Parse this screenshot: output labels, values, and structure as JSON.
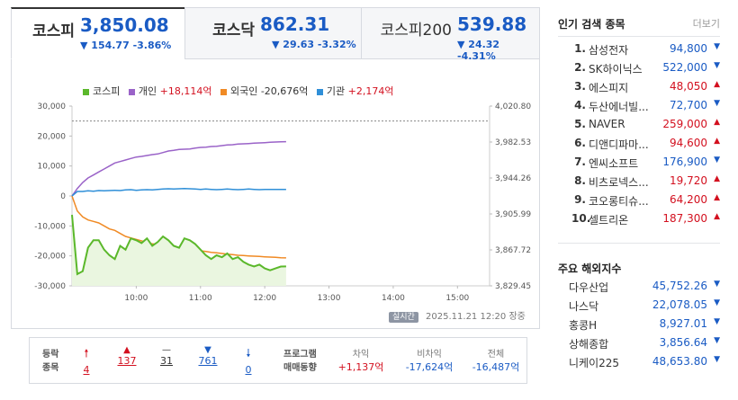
{
  "tabs": [
    {
      "name": "코스피",
      "value": "3,850.08",
      "change": "▼ 154.77 -3.86%"
    },
    {
      "name": "코스닥",
      "value": "862.31",
      "change": "▼ 29.63 -3.32%"
    },
    {
      "name": "코스피200",
      "value": "539.88",
      "change": "▼ 24.32 -4.31%"
    }
  ],
  "legend": {
    "kospi": "코스피",
    "individual": "개인",
    "individual_val": "+18,114억",
    "foreign": "외국인",
    "foreign_val": "-20,676억",
    "institution": "기관",
    "institution_val": "+2,174억"
  },
  "chart_data": {
    "type": "line",
    "left_axis_ticks": [
      "30,000",
      "20,000",
      "10,000",
      "0",
      "-10,000",
      "-20,000",
      "-30,000"
    ],
    "right_axis_ticks": [
      "4,020.80",
      "3,982.53",
      "3,944.26",
      "3,905.99",
      "3,867.72",
      "3,829.45"
    ],
    "x_ticks": [
      "10:00",
      "11:00",
      "12:00",
      "13:00",
      "14:00",
      "15:00"
    ],
    "ylim_left": [
      -30000,
      30000
    ],
    "ylim_right": [
      3829.45,
      4020.8
    ],
    "prev_close_right": 4004.85,
    "colors": {
      "kospi": "#5bb82b",
      "individual": "#9a63c8",
      "foreign": "#f08a24",
      "institution": "#2f8fd8"
    },
    "x_time": [
      "09:00",
      "09:05",
      "09:10",
      "09:15",
      "09:20",
      "09:25",
      "09:30",
      "09:35",
      "09:40",
      "09:45",
      "09:50",
      "09:55",
      "10:00",
      "10:05",
      "10:10",
      "10:15",
      "10:20",
      "10:25",
      "10:30",
      "10:35",
      "10:40",
      "10:45",
      "10:50",
      "10:55",
      "11:00",
      "11:05",
      "11:10",
      "11:15",
      "11:20",
      "11:25",
      "11:30",
      "11:35",
      "11:40",
      "11:45",
      "11:50",
      "11:55",
      "12:00",
      "12:05",
      "12:10",
      "12:15",
      "12:20"
    ],
    "series": [
      {
        "name": "개인",
        "axis": "left",
        "values": [
          0,
          2500,
          4500,
          6000,
          7000,
          8000,
          9000,
          10000,
          11000,
          11500,
          12000,
          12500,
          13000,
          13200,
          13500,
          13800,
          14000,
          14500,
          15000,
          15200,
          15500,
          15600,
          15700,
          16000,
          16200,
          16300,
          16500,
          16600,
          16800,
          17000,
          17100,
          17300,
          17400,
          17500,
          17600,
          17700,
          17800,
          17900,
          18000,
          18050,
          18114
        ]
      },
      {
        "name": "외국인",
        "axis": "left",
        "values": [
          0,
          -5000,
          -7000,
          -8000,
          -8500,
          -9000,
          -10000,
          -11000,
          -11500,
          -12500,
          -13500,
          -14000,
          -14500,
          -15000,
          -15500,
          -16000,
          -16200,
          -16500,
          -16800,
          -17000,
          -17300,
          -17500,
          -17800,
          -18000,
          -18300,
          -18500,
          -18800,
          -19000,
          -19200,
          -19400,
          -19600,
          -19800,
          -19900,
          -20000,
          -20100,
          -20200,
          -20300,
          -20400,
          -20500,
          -20600,
          -20676
        ]
      },
      {
        "name": "기관",
        "axis": "left",
        "values": [
          0,
          1500,
          1500,
          1700,
          1600,
          1800,
          1700,
          1800,
          1900,
          1800,
          2000,
          2100,
          1900,
          2000,
          2100,
          2000,
          2200,
          2300,
          2400,
          2300,
          2400,
          2500,
          2400,
          2300,
          2200,
          2300,
          2200,
          2100,
          2200,
          2300,
          2200,
          2100,
          2200,
          2300,
          2200,
          2100,
          2200,
          2200,
          2150,
          2180,
          2174
        ]
      },
      {
        "name": "코스피",
        "axis": "right",
        "values": [
          3905,
          3842,
          3845,
          3870,
          3878,
          3878,
          3868,
          3862,
          3858,
          3872,
          3868,
          3880,
          3878,
          3875,
          3880,
          3872,
          3876,
          3882,
          3878,
          3872,
          3870,
          3880,
          3878,
          3874,
          3868,
          3862,
          3858,
          3862,
          3860,
          3864,
          3858,
          3860,
          3855,
          3852,
          3850,
          3852,
          3848,
          3846,
          3848,
          3850,
          3850.08
        ]
      }
    ]
  },
  "status": {
    "label": "실시간",
    "datetime": "2025.11.21 12:20",
    "state": "장중"
  },
  "bottom": {
    "h1a": "등락",
    "h1b": "종목",
    "up_limit": "4",
    "up": "137",
    "flat": "31",
    "down": "761",
    "down_limit": "0",
    "h2a": "프로그램",
    "h2b": "매매동향",
    "c1_label": "차익",
    "c1_value": "+1,137억",
    "c2_label": "비차익",
    "c2_value": "-17,624억",
    "c3_label": "전체",
    "c3_value": "-16,487억"
  },
  "popular": {
    "title": "인기 검색 종목",
    "more": "더보기",
    "items": [
      {
        "no": "1.",
        "name": "삼성전자",
        "price": "94,800",
        "dir": "down"
      },
      {
        "no": "2.",
        "name": "SK하이닉스",
        "price": "522,000",
        "dir": "down"
      },
      {
        "no": "3.",
        "name": "에스피지",
        "price": "48,050",
        "dir": "up"
      },
      {
        "no": "4.",
        "name": "두산에너빌...",
        "price": "72,700",
        "dir": "down"
      },
      {
        "no": "5.",
        "name": "NAVER",
        "price": "259,000",
        "dir": "up"
      },
      {
        "no": "6.",
        "name": "디앤디파마...",
        "price": "94,600",
        "dir": "up"
      },
      {
        "no": "7.",
        "name": "엔씨소프트",
        "price": "176,900",
        "dir": "down"
      },
      {
        "no": "8.",
        "name": "비츠로넥스...",
        "price": "19,720",
        "dir": "up"
      },
      {
        "no": "9.",
        "name": "코오롱티슈...",
        "price": "64,200",
        "dir": "up"
      },
      {
        "no": "10.",
        "name": "셀트리온",
        "price": "187,300",
        "dir": "up"
      }
    ]
  },
  "overseas": {
    "title": "주요 해외지수",
    "items": [
      {
        "name": "다우산업",
        "value": "45,752.26"
      },
      {
        "name": "나스닥",
        "value": "22,078.05"
      },
      {
        "name": "홍콩H",
        "value": "8,927.01"
      },
      {
        "name": "상해종합",
        "value": "3,856.64"
      },
      {
        "name": "니케이225",
        "value": "48,653.80"
      }
    ]
  }
}
